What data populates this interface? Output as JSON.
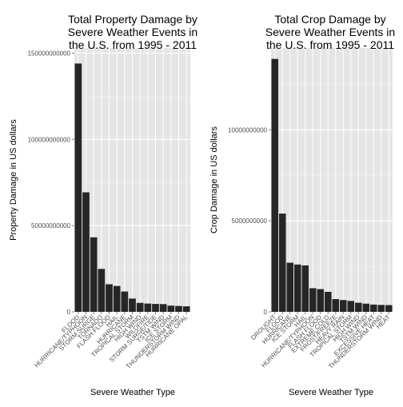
{
  "chart_data": [
    {
      "type": "bar",
      "title_lines": [
        "Total Property Damage by",
        "Severe Weather Events in",
        "the U.S. from 1995 - 2011"
      ],
      "xlabel": "Severe Weather Type",
      "ylabel": "Property Damage in US dollars",
      "ylim": [
        0,
        153000000000
      ],
      "yticks": [
        0,
        50000000000,
        100000000000,
        150000000000
      ],
      "ytick_labels": [
        "0",
        "50000000000",
        "100000000000",
        "150000000000"
      ],
      "categories": [
        "FLOOD",
        "HURRICANE/TYPHOON",
        "STORM SURGE",
        "TORNADO",
        "FLASH FLOOD",
        "HAIL",
        "HURRICANE",
        "TROPICAL STORM",
        "HIGH WIND",
        "WILDFIRE",
        "STORM SURGE/TIDE",
        "TSTM WIND",
        "ICE STORM",
        "THUNDERSTORM WIND",
        "HURRICANE OPAL"
      ],
      "values": [
        144000000000,
        69300000000,
        43200000000,
        24900000000,
        16000000000,
        15000000000,
        11800000000,
        7700000000,
        5200000000,
        4800000000,
        4600000000,
        4500000000,
        3600000000,
        3400000000,
        3200000000
      ],
      "bar_color": "#262626",
      "panel_color": "#e5e5e5",
      "grid": true
    },
    {
      "type": "bar",
      "title_lines": [
        "Total Crop Damage by",
        "Severe Weather Events in",
        "the U.S. from 1995 - 2011"
      ],
      "xlabel": "Severe Weather Type",
      "ylabel": "Crop Damage in US dollars",
      "ylim": [
        0,
        14500000000
      ],
      "yticks": [
        0,
        5000000000,
        10000000000
      ],
      "ytick_labels": [
        "0",
        "5000000000",
        "10000000000"
      ],
      "categories": [
        "DROUGHT",
        "FLOOD",
        "HURRICANE",
        "ICE STORM",
        "HAIL",
        "HURRICANE/TYPHOON",
        "FLASH FLOOD",
        "EXTREME COLD",
        "FROST/FREEZE",
        "HEAVY RAIN",
        "TROPICAL STORM",
        "HIGH WIND",
        "TSTM WIND",
        "EXCESSIVE HEAT",
        "THUNDERSTORM WIND",
        "HEAT"
      ],
      "values": [
        13900000000,
        5400000000,
        2700000000,
        2600000000,
        2550000000,
        1300000000,
        1250000000,
        1100000000,
        700000000,
        650000000,
        600000000,
        500000000,
        450000000,
        400000000,
        380000000,
        370000000
      ],
      "bar_color": "#262626",
      "panel_color": "#e5e5e5",
      "grid": true
    }
  ]
}
